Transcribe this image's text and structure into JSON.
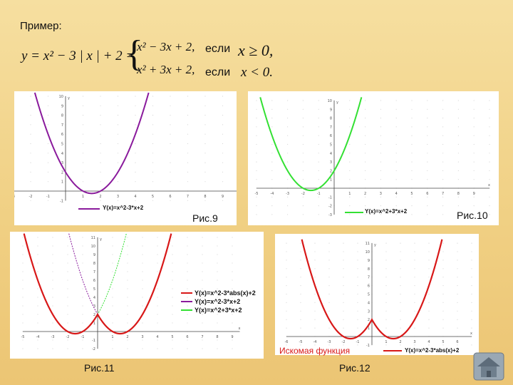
{
  "slide": {
    "title": "Пример:",
    "formula": {
      "lhs": "y = x² − 3 | x | + 2 =",
      "case1_expr": "x² − 3x + 2,",
      "case1_word": "если",
      "case1_cond": "x ≥ 0,",
      "case2_expr": "x² + 3x + 2,",
      "case2_word": "если",
      "case2_cond": "x < 0."
    }
  },
  "figures": {
    "fig9": {
      "caption": "Рис.9",
      "legend": "Y(x)=x^2-3*x+2",
      "color": "#8a1a9c"
    },
    "fig10": {
      "caption": "Рис.10",
      "legend": "Y(x)=x^2+3*x+2",
      "color": "#33e033"
    },
    "fig11": {
      "caption": "Рис.11",
      "legend": [
        "Y(x)=x^2-3*abs(x)+2",
        "Y(x)=x^2-3*x+2",
        "Y(x)=x^2+3*x+2"
      ],
      "colors": [
        "#d81818",
        "#8a1a9c",
        "#33e033"
      ]
    },
    "fig12": {
      "caption": "Рис.12",
      "title": "Искомая функция",
      "legend": "Y(x)=x^2-3*abs(x)+2",
      "color": "#d81818"
    }
  },
  "icons": {
    "home": "home-icon"
  }
}
